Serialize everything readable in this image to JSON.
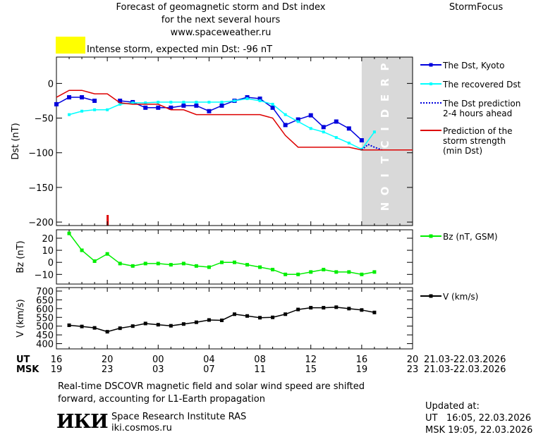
{
  "header": {
    "title_line1": "Forecast of geomagnetic storm and Dst index",
    "title_line2": "for the next several hours",
    "title_line3": "www.spaceweather.ru",
    "brand": "StormFocus"
  },
  "storm_level": {
    "text": "Intense storm, expected min Dst: -96 nT",
    "color": "#ffff00"
  },
  "prediction_label": "PREDICTION",
  "colors": {
    "dst_kyoto": "#0000dd",
    "recovered": "#00ffff",
    "prediction": "#0000dd",
    "strength": "#dd0000",
    "bz": "#00ee00",
    "v": "#000000",
    "prediction_band": "#d9d9d9"
  },
  "time_axis": {
    "ut_label": "UT",
    "msk_label": "MSK",
    "ut_ticks": [
      "16",
      "20",
      "00",
      "04",
      "08",
      "12",
      "16",
      "20"
    ],
    "msk_ticks": [
      "19",
      "23",
      "03",
      "07",
      "11",
      "15",
      "19",
      "23"
    ],
    "ut_date_range": "21.03-22.03.2026",
    "msk_date_range": "21.03-22.03.2026"
  },
  "footer": {
    "note_line1": "Real-time DSCOVR magnetic field and solar wind speed are shifted",
    "note_line2": "forward, accounting for L1-Earth propagation",
    "logo_text": "ИКИ",
    "institute_name": "Space Research Institute RAS",
    "institute_url": "iki.cosmos.ru",
    "updated_label": "Updated at:",
    "updated_ut": "UT   16:05, 22.03.2026",
    "updated_msk": "MSK 19:05, 22.03.2026"
  },
  "chart_data": [
    {
      "type": "line",
      "ylabel": "Dst (nT)",
      "ylim": [
        -205,
        38
      ],
      "yticks": [
        0,
        -50,
        -100,
        -150,
        -200
      ],
      "x_unit": "hours since 16 UT, 21.03.2026",
      "xlim": [
        0,
        28
      ],
      "storm_marker_x": 4,
      "prediction_start_x": 24,
      "series": [
        {
          "name": "The Dst, Kyoto",
          "marker": "square",
          "x": [
            0,
            1,
            2,
            3
          ],
          "y": [
            -30,
            -20,
            -20,
            -25
          ]
        },
        {
          "name": "The Dst, Kyoto",
          "marker": "square",
          "x": [
            5,
            6,
            7,
            8,
            9,
            10,
            11,
            12,
            13,
            14,
            15,
            16,
            17,
            18,
            19,
            20,
            21,
            22,
            23,
            24
          ],
          "y": [
            -25,
            -27,
            -35,
            -35,
            -35,
            -32,
            -32,
            -40,
            -32,
            -25,
            -20,
            -22,
            -35,
            -60,
            -52,
            -46,
            -63,
            -55,
            -65,
            -82
          ]
        },
        {
          "name": "The recovered Dst",
          "marker": "small-square",
          "x": [
            1,
            2,
            3,
            4,
            5,
            6,
            7,
            8,
            9,
            10,
            11,
            12,
            13,
            14,
            15,
            16,
            17,
            18,
            19,
            20,
            21,
            22,
            23,
            24,
            25
          ],
          "y": [
            -45,
            -40,
            -38,
            -38,
            -30,
            -28,
            -28,
            -27,
            -27,
            -27,
            -27,
            -27,
            -27,
            -25,
            -22,
            -25,
            -30,
            -45,
            -55,
            -65,
            -70,
            -78,
            -86,
            -95,
            -70
          ]
        },
        {
          "name": "The Dst prediction\n2-4 hours ahead",
          "style": "dotted",
          "x": [
            24,
            24.5,
            25,
            25.6
          ],
          "y": [
            -96,
            -88,
            -92,
            -96
          ]
        },
        {
          "name": "Prediction of the\nstorm strength\n(min Dst)",
          "style": "solid",
          "x": [
            0,
            1,
            2,
            3,
            4,
            5,
            6,
            7,
            8,
            9,
            10,
            11,
            12,
            13,
            14,
            15,
            16,
            17,
            18,
            19,
            20,
            21,
            22,
            23,
            24,
            28
          ],
          "y": [
            -20,
            -10,
            -10,
            -15,
            -15,
            -28,
            -30,
            -30,
            -30,
            -38,
            -38,
            -45,
            -45,
            -45,
            -45,
            -45,
            -45,
            -50,
            -75,
            -92,
            -92,
            -92,
            -92,
            -92,
            -96,
            -96
          ]
        }
      ]
    },
    {
      "type": "line",
      "ylabel": "Bz (nT)",
      "ylim": [
        -18,
        27
      ],
      "yticks": [
        20,
        10,
        0,
        -10
      ],
      "xlim": [
        0,
        28
      ],
      "series": [
        {
          "name": "Bz (nT, GSM)",
          "marker": "square",
          "x": [
            1,
            2,
            3,
            4,
            5,
            6,
            7,
            8,
            9,
            10,
            11,
            12,
            13,
            14,
            15,
            16,
            17,
            18,
            19,
            20,
            21,
            22,
            23,
            24,
            25
          ],
          "y": [
            24,
            10,
            1,
            7,
            -1,
            -3,
            -1,
            -1,
            -2,
            -1,
            -3,
            -4,
            0,
            0,
            -2,
            -4,
            -6,
            -10,
            -10,
            -8,
            -6,
            -8,
            -8,
            -10,
            -8
          ]
        }
      ]
    },
    {
      "type": "line",
      "ylabel": "V (km/s)",
      "ylim": [
        370,
        720
      ],
      "yticks": [
        700,
        650,
        600,
        550,
        500,
        450,
        400
      ],
      "xlim": [
        0,
        28
      ],
      "series": [
        {
          "name": "V (km/s)",
          "marker": "square",
          "x": [
            1,
            2,
            3,
            4,
            5,
            6,
            7,
            8,
            9,
            10,
            11,
            12,
            13,
            14,
            15,
            16,
            17,
            18,
            19,
            20,
            21,
            22,
            23,
            24,
            25
          ],
          "y": [
            505,
            498,
            490,
            468,
            488,
            500,
            515,
            508,
            502,
            512,
            522,
            535,
            533,
            568,
            558,
            548,
            550,
            568,
            595,
            605,
            605,
            608,
            600,
            592,
            578
          ]
        }
      ]
    }
  ]
}
